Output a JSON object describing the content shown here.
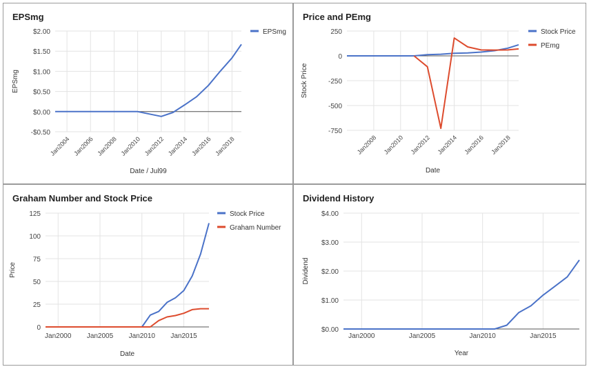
{
  "chart_data": [
    {
      "type": "line",
      "title": "EPSmg",
      "xlabel": "Date / Jul99",
      "ylabel": "EPSmg",
      "ylim": [
        -0.5,
        2.0
      ],
      "xlim": [
        2003,
        2018.8
      ],
      "y_ticks": [
        2.0,
        1.5,
        1.0,
        0.5,
        0.0,
        -0.5
      ],
      "y_tick_labels": [
        "$2.00",
        "$1.50",
        "$1.00",
        "$0.50",
        "$0.00",
        "-$0.50"
      ],
      "x_ticks": [
        2004,
        2006,
        2008,
        2010,
        2012,
        2014,
        2016,
        2018
      ],
      "x_tick_labels": [
        "Jan2004",
        "Jan2006",
        "Jan2008",
        "Jan2010",
        "Jan2012",
        "Jan2014",
        "Jan2016",
        "Jan2018"
      ],
      "grid": true,
      "legend_position": "top-right",
      "baseline": 0,
      "series": [
        {
          "name": "EPSmg",
          "color": "#4a72c8",
          "x": [
            2003,
            2010,
            2012,
            2013,
            2014,
            2015,
            2016,
            2017,
            2018,
            2018.8
          ],
          "values": [
            0,
            0,
            -0.12,
            -0.02,
            0.17,
            0.37,
            0.65,
            1.0,
            1.33,
            1.67
          ]
        }
      ]
    },
    {
      "type": "line",
      "title": "Price and PEmg",
      "xlabel": "Date",
      "ylabel": "Stock Price",
      "ylim": [
        -750,
        250
      ],
      "xlim": [
        2006,
        2018.8
      ],
      "y_ticks": [
        250,
        0,
        -250,
        -500,
        -750
      ],
      "y_tick_labels": [
        "250",
        "0",
        "-250",
        "-500",
        "-750"
      ],
      "x_ticks": [
        2008,
        2010,
        2012,
        2014,
        2016,
        2018
      ],
      "x_tick_labels": [
        "Jan2008",
        "Jan2010",
        "Jan2012",
        "Jan2014",
        "Jan2016",
        "Jan2018"
      ],
      "grid": true,
      "legend_position": "top-right",
      "baseline": 0,
      "series": [
        {
          "name": "Stock Price",
          "color": "#4a72c8",
          "x": [
            2006,
            2011,
            2012,
            2013,
            2014,
            2015,
            2016,
            2017,
            2018,
            2018.8
          ],
          "values": [
            0,
            0,
            12,
            17,
            26,
            30,
            38,
            52,
            78,
            112
          ]
        },
        {
          "name": "PEmg",
          "color": "#dd4b2d",
          "x": [
            2011,
            2012,
            2013,
            2014,
            2015,
            2016,
            2017,
            2018,
            2018.8
          ],
          "values": [
            0,
            -110,
            -730,
            180,
            90,
            60,
            58,
            60,
            70
          ]
        }
      ]
    },
    {
      "type": "line",
      "title": "Graham Number and Stock Price",
      "xlabel": "Date",
      "ylabel": "Price",
      "ylim": [
        0,
        125
      ],
      "xlim": [
        1998.5,
        2018
      ],
      "y_ticks": [
        125,
        100,
        75,
        50,
        25,
        0
      ],
      "y_tick_labels": [
        "125",
        "100",
        "75",
        "50",
        "25",
        "0"
      ],
      "x_ticks": [
        2000,
        2005,
        2010,
        2015
      ],
      "x_tick_labels": [
        "Jan2000",
        "Jan2005",
        "Jan2010",
        "Jan2015"
      ],
      "grid": true,
      "legend_position": "top-right",
      "series": [
        {
          "name": "Stock Price",
          "color": "#4a72c8",
          "x": [
            1998.5,
            2010,
            2011,
            2012,
            2013,
            2014,
            2015,
            2016,
            2017,
            2018
          ],
          "values": [
            0,
            0,
            13,
            17,
            27,
            32,
            40,
            56,
            80,
            114
          ]
        },
        {
          "name": "Graham Number",
          "color": "#dd4b2d",
          "x": [
            1998.5,
            2011,
            2012,
            2013,
            2014,
            2015,
            2016,
            2017,
            2018
          ],
          "values": [
            0,
            0,
            7,
            11,
            12.5,
            15,
            19,
            20,
            20
          ]
        }
      ]
    },
    {
      "type": "line",
      "title": "Dividend History",
      "xlabel": "Year",
      "ylabel": "Dividend",
      "ylim": [
        0,
        4
      ],
      "xlim": [
        1998.5,
        2018
      ],
      "y_ticks": [
        4,
        3,
        2,
        1,
        0
      ],
      "y_tick_labels": [
        "$4.00",
        "$3.00",
        "$2.00",
        "$1.00",
        "$0.00"
      ],
      "x_ticks": [
        2000,
        2005,
        2010,
        2015
      ],
      "x_tick_labels": [
        "Jan2000",
        "Jan2005",
        "Jan2010",
        "Jan2015"
      ],
      "grid": true,
      "legend_position": "none",
      "series": [
        {
          "name": "",
          "color": "#4a72c8",
          "x": [
            1998.5,
            2011,
            2012,
            2013,
            2014,
            2015,
            2016,
            2017,
            2018
          ],
          "values": [
            0,
            0,
            0.13,
            0.57,
            0.8,
            1.17,
            1.48,
            1.8,
            2.38
          ]
        }
      ]
    }
  ]
}
